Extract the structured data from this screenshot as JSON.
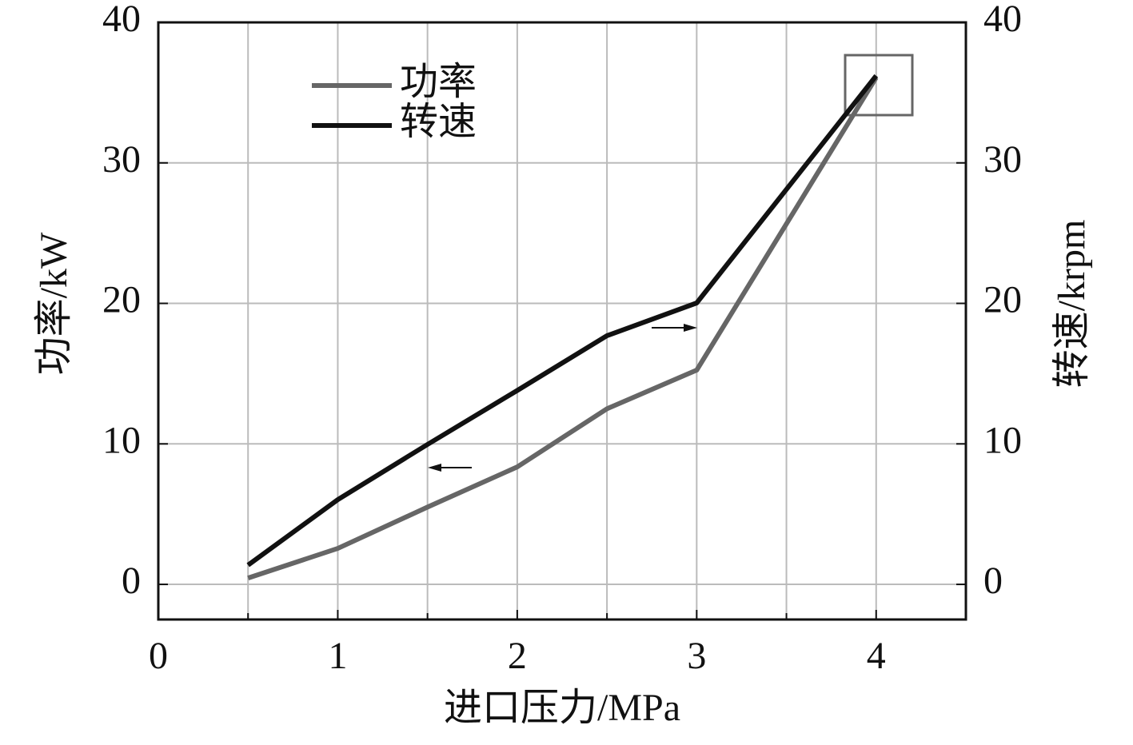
{
  "chart_data": {
    "type": "line",
    "x_label": "进口压力/MPa",
    "y_label": "功率/kW",
    "y2_label": "转速/krpm",
    "x": [
      0.5,
      1,
      1.5,
      2,
      2.5,
      3,
      4
    ],
    "series": [
      {
        "name": "功率",
        "color": "#666666",
        "values": [
          0.45,
          2.56,
          5.5,
          8.36,
          12.5,
          15.25,
          36.07
        ]
      },
      {
        "name": "转速",
        "color": "#111111",
        "axis": "y2",
        "values": [
          1.37,
          6.03,
          9.96,
          13.8,
          17.7,
          20.03,
          36.2
        ]
      }
    ],
    "xlim": [
      0,
      4.5
    ],
    "xticks": [
      0,
      1,
      2,
      3,
      4
    ],
    "xminorticks": [
      0.5,
      1.5,
      2.5,
      3.5
    ],
    "ylim": [
      -2.5,
      40
    ],
    "yticks": [
      0,
      10,
      20,
      30,
      40
    ],
    "y2lim": [
      -2.5,
      40
    ],
    "y2ticks": [
      0,
      10,
      20,
      30,
      40
    ],
    "grid": true
  }
}
